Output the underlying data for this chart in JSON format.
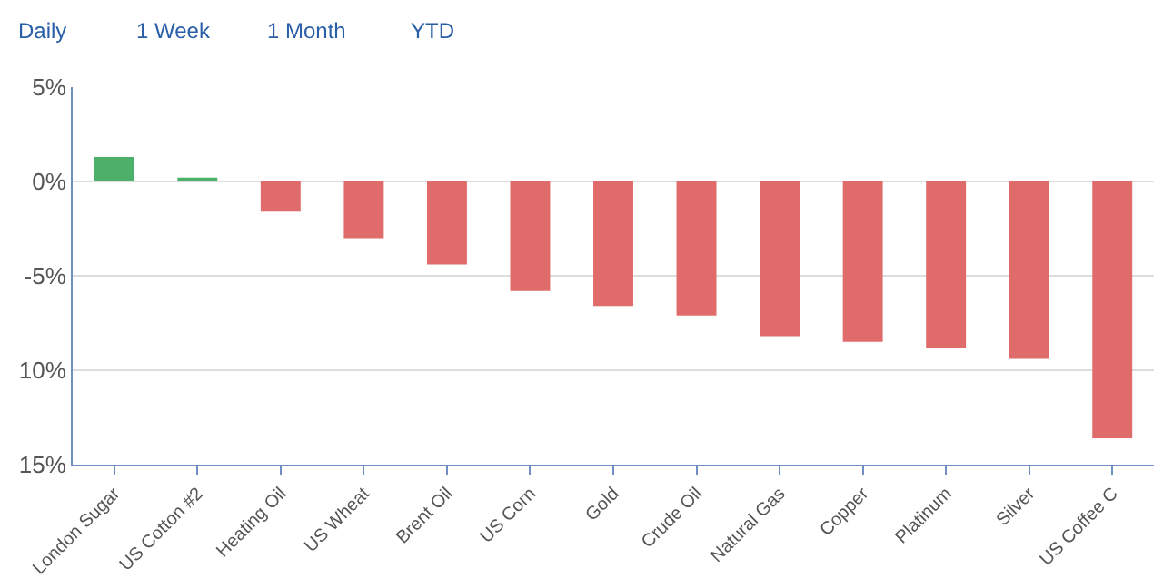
{
  "chart_data": {
    "type": "bar",
    "categories": [
      "London Sugar",
      "US Cotton #2",
      "Heating Oil",
      "US Wheat",
      "Brent Oil",
      "US Corn",
      "Gold",
      "Crude Oil",
      "Natural Gas",
      "Copper",
      "Platinum",
      "Silver",
      "US Coffee C"
    ],
    "values": [
      1.3,
      0.2,
      -1.6,
      -3.0,
      -4.4,
      -5.8,
      -6.6,
      -7.1,
      -8.2,
      -8.5,
      -8.8,
      -9.4,
      -13.6
    ],
    "colors": [
      "#4caf6a",
      "#4caf6a",
      "#e06b6b",
      "#e06b6b",
      "#e06b6b",
      "#e06b6b",
      "#e06b6b",
      "#e06b6b",
      "#e06b6b",
      "#e06b6b",
      "#e06b6b",
      "#e06b6b",
      "#e06b6b"
    ],
    "ylim": [
      -15,
      5
    ],
    "yticks": [
      {
        "value": 5,
        "label": "5%"
      },
      {
        "value": 0,
        "label": "0%"
      },
      {
        "value": -5,
        "label": "-5%"
      },
      {
        "value": -10,
        "label": "10%"
      },
      {
        "value": -15,
        "label": "15%"
      }
    ],
    "grid": "y",
    "annotations": [
      "Daily",
      "1 Week",
      "1 Month",
      "YTD"
    ]
  }
}
